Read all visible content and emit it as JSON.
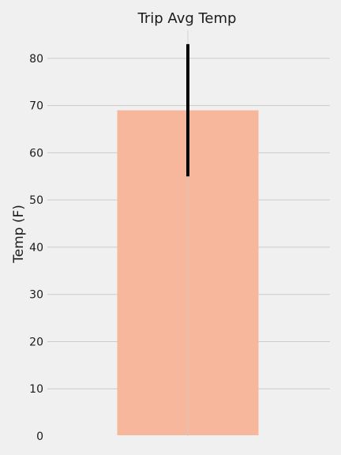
{
  "chart_data": {
    "type": "bar",
    "title": "Trip Avg Temp",
    "xlabel": "",
    "ylabel": "Temp (F)",
    "categories": [
      ""
    ],
    "values": [
      69
    ],
    "error": [
      {
        "low": 55,
        "high": 83
      }
    ],
    "ylim": [
      0,
      86
    ],
    "yticks": [
      0,
      10,
      20,
      30,
      40,
      50,
      60,
      70,
      80
    ],
    "grid": true,
    "colors": {
      "bar": "#f7b79d",
      "errorbar": "#000000",
      "grid": "#cbcbcb",
      "background": "#f0f0f0"
    }
  }
}
